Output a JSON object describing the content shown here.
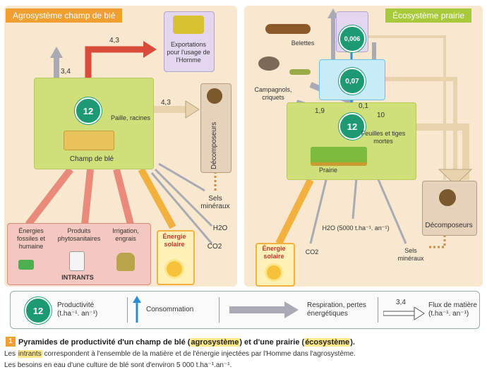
{
  "left_panel": {
    "title": "Agrosystème champ de blé",
    "productivity": "12",
    "field_label": "Champ de blé",
    "straw_label": "Paille, racines",
    "export_label": "Exportations pour l'usage de l'Homme",
    "decomposers_label": "Décomposeurs",
    "minerals_label": "Sels minéraux",
    "water_label": "H2O",
    "co2_label": "CO2",
    "solar_label": "Énergie solaire",
    "inputs_label": "INTRANTS",
    "inputs": [
      "Énergies fossiles et humaine",
      "Produits phytosanitaires",
      "Irrigation, engrais"
    ],
    "flow_respiration": "3,4",
    "flow_export": "4,3",
    "flow_straw": "4,3"
  },
  "right_panel": {
    "title": "Écosystème prairie",
    "productivity": "12",
    "level2": "0,07",
    "level3": "0,006",
    "weasels_label": "Belettes",
    "voles_label": "Campagnols, criquets",
    "leaves_label": "Feuilles et tiges mortes",
    "meadow_label": "Prairie",
    "decomposers_label": "Décomposeurs",
    "minerals_label": "Sels minéraux",
    "water_label": "H2O (5000 t.ha⁻¹. an⁻¹)",
    "co2_label": "CO2",
    "solar_label": "Énergie solaire",
    "flow_resp": "1,9",
    "flow_consumption": "0,1",
    "flow_dead": "10"
  },
  "legend": {
    "productivity_value": "12",
    "productivity_label": "Productivité (t.ha⁻¹. an⁻¹)",
    "consumption_label": "Consommation",
    "respiration_label": "Respiration, pertes énergétiques",
    "flux_value": "3,4",
    "flux_label": "Flux de matière (t.ha⁻¹. an⁻¹)"
  },
  "caption": {
    "number": "1",
    "title_prefix": "Pyramides de productivité d'un champ de blé (",
    "title_agro": "agrosystème",
    "title_mid": ") et d'une prairie (",
    "title_eco": "écosystème",
    "title_suffix": ").",
    "line1_prefix": "Les ",
    "line1_highlight": "intrants",
    "line1_suffix": " correspondent à l'ensemble de la matière et de l'énergie injectées par l'Homme dans l'agrosystème.",
    "line2": "Les besoins en eau d'une culture de blé sont d'environ 5 000 t.ha⁻¹.an⁻¹."
  },
  "colors": {
    "green_circle": "#1d9a73",
    "panel_bg": "#f7e8cf",
    "field_box": "#cfe07a",
    "tag_orange": "#f0a030",
    "tag_green": "#a8c93a",
    "arrow_red": "#e05040",
    "arrow_grey": "#a9aab3",
    "arrow_tan": "#e9d3ae",
    "arrow_blue": "#2b8fd6",
    "solar_yellow": "#f6c23a"
  }
}
